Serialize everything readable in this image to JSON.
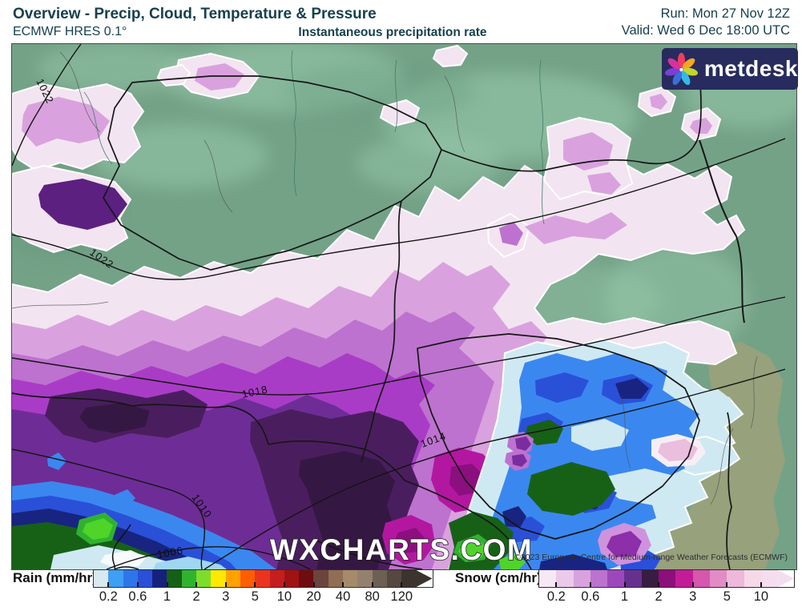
{
  "header": {
    "title": "Overview - Precip, Cloud, Temperature & Pressure",
    "model": "ECMWF HRES 0.1°",
    "subtitle": "Instantaneous precipitation rate",
    "run": "Run: Mon 27 Nov 12Z",
    "valid": "Valid: Wed 6 Dec 18:00 UTC"
  },
  "logo": {
    "brand": "metdesk"
  },
  "map": {
    "watermark": "WXCHARTS.COM",
    "copyright": "©2023 European Centre for Medium-range Weather Forecasts (ECMWF)",
    "isobars": {
      "nw_1022": "1022",
      "west_1022": "1022",
      "mid_1018": "1018",
      "southeast_1014": "1014",
      "southwest_1010": "1010",
      "south_1006": "1006"
    }
  },
  "rain_legend": {
    "label": "Rain (mm/hr)",
    "ticks": [
      "0.2",
      "0.6",
      "1",
      "2",
      "3",
      "5",
      "10",
      "20",
      "40",
      "80",
      "120"
    ],
    "colors": [
      "#d8e9ef",
      "#3f9ff2",
      "#2e75ea",
      "#2a4fd8",
      "#16207d",
      "#156015",
      "#2fb32f",
      "#7ddd2d",
      "#ffe900",
      "#ffa200",
      "#ff5e00",
      "#ea3420",
      "#c41e1e",
      "#a01313",
      "#6e0d10",
      "#6b453c",
      "#8f6e54",
      "#a58a6b",
      "#94816d",
      "#6e5f54",
      "#544840",
      "#3b332e"
    ]
  },
  "snow_legend": {
    "label": "Snow (cm/hr)",
    "ticks": [
      "0.2",
      "0.6",
      "1",
      "2",
      "3",
      "5",
      "10"
    ],
    "colors": [
      "#f6e8f4",
      "#eac9ea",
      "#d8a2de",
      "#bc72cf",
      "#9c48bb",
      "#66308f",
      "#391c42",
      "#8c0f7a",
      "#c21d97",
      "#d557ae",
      "#e18cc5",
      "#edb8d9",
      "#f5d9e9",
      "#f3ddee"
    ]
  },
  "palette": {
    "header_text": "#17404f",
    "land_green": "#74a287",
    "land_olive": "#97a17c",
    "logo_bg": "#272b5e"
  }
}
